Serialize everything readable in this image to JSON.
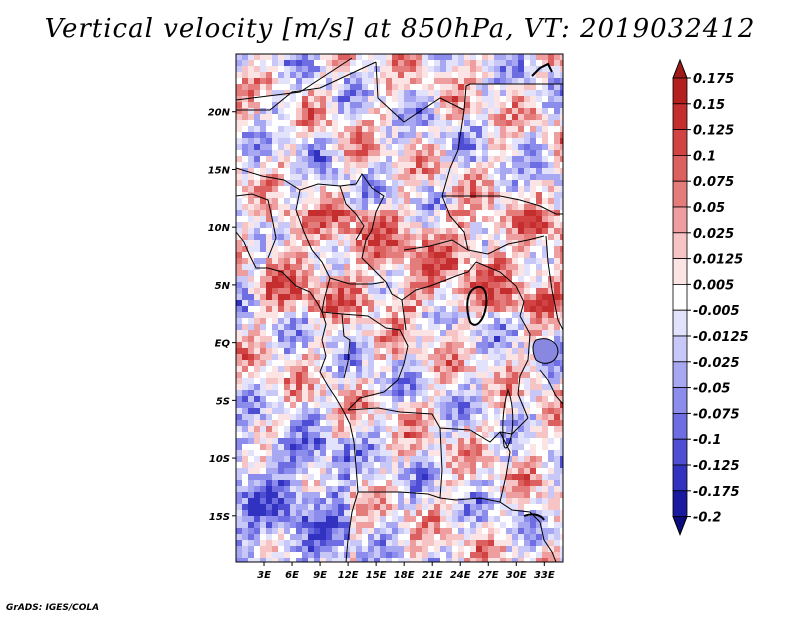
{
  "title": "Vertical velocity [m/s] at 850hPa, VT: 2019032412",
  "credit": "GrADS: IGES/COLA",
  "map": {
    "lat_range": [
      -19,
      25
    ],
    "lon_range": [
      0,
      35
    ],
    "lat_ticks": [
      {
        "value": 20,
        "label": "20N"
      },
      {
        "value": 15,
        "label": "15N"
      },
      {
        "value": 10,
        "label": "10N"
      },
      {
        "value": 5,
        "label": "5N"
      },
      {
        "value": 0,
        "label": "EQ"
      },
      {
        "value": -5,
        "label": "5S"
      },
      {
        "value": -10,
        "label": "10S"
      },
      {
        "value": -15,
        "label": "15S"
      }
    ],
    "lon_ticks": [
      {
        "value": 3,
        "label": "3E"
      },
      {
        "value": 6,
        "label": "6E"
      },
      {
        "value": 9,
        "label": "9E"
      },
      {
        "value": 12,
        "label": "12E"
      },
      {
        "value": 15,
        "label": "15E"
      },
      {
        "value": 18,
        "label": "18E"
      },
      {
        "value": 21,
        "label": "21E"
      },
      {
        "value": 24,
        "label": "24E"
      },
      {
        "value": 27,
        "label": "27E"
      },
      {
        "value": 30,
        "label": "30E"
      },
      {
        "value": 33,
        "label": "33E"
      }
    ]
  },
  "colorbar": {
    "labels": [
      "0.175",
      "0.15",
      "0.125",
      "0.1",
      "0.075",
      "0.05",
      "0.025",
      "0.0125",
      "0.005",
      "-0.005",
      "-0.0125",
      "-0.025",
      "-0.05",
      "-0.075",
      "-0.1",
      "-0.125",
      "-0.175",
      "-0.2"
    ],
    "colors": [
      "#a01a1a",
      "#b42020",
      "#c42e2e",
      "#d24444",
      "#dc6060",
      "#e47c7c",
      "#ee9e9e",
      "#f6c4c4",
      "#fce4e4",
      "#ffffff",
      "#e2e2fc",
      "#c8c8f8",
      "#a8a8f2",
      "#8c8cec",
      "#6e6ee2",
      "#4e4ed4",
      "#3232c0",
      "#1a1aa0",
      "#0c0c80"
    ]
  }
}
